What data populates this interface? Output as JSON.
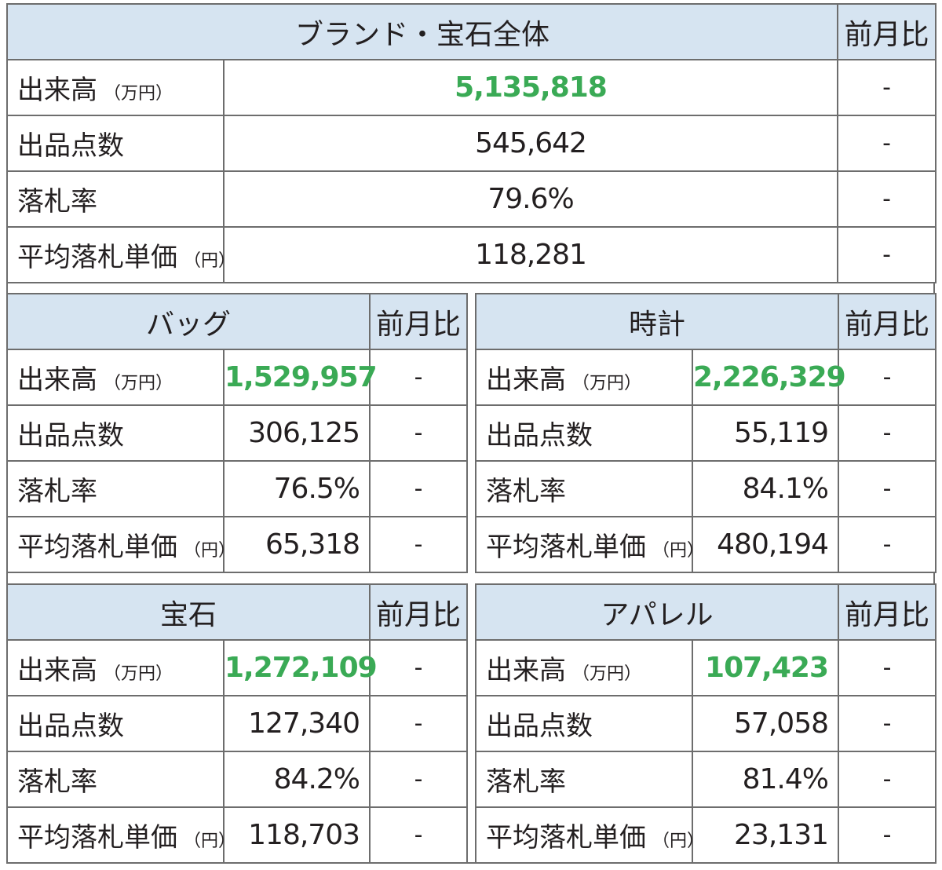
{
  "overall": {
    "title": "ブランド・宝石全体",
    "change_header": "前月比",
    "rows": [
      {
        "label": "出来高",
        "unit": "（万円）",
        "value": "5,135,818",
        "change": "-",
        "highlight": true
      },
      {
        "label": "出品点数",
        "unit": "",
        "value": "545,642",
        "change": "-"
      },
      {
        "label": "落札率",
        "unit": "",
        "value": "79.6%",
        "change": "-"
      },
      {
        "label": "平均落札単価",
        "unit": "（円）",
        "value": "118,281",
        "change": "-"
      }
    ]
  },
  "sections": [
    {
      "title": "バッグ",
      "change_header": "前月比",
      "rows": [
        {
          "label": "出来高",
          "unit": "（万円）",
          "value": "1,529,957",
          "change": "-"
        },
        {
          "label": "出品点数",
          "unit": "",
          "value": "306,125",
          "change": "-"
        },
        {
          "label": "落札率",
          "unit": "",
          "value": "76.5%",
          "change": "-"
        },
        {
          "label": "平均落札単価",
          "unit": "（円）",
          "value": "65,318",
          "change": "-"
        }
      ]
    },
    {
      "title": "時計",
      "change_header": "前月比",
      "rows": [
        {
          "label": "出来高",
          "unit": "（万円）",
          "value": "2,226,329",
          "change": "-"
        },
        {
          "label": "出品点数",
          "unit": "",
          "value": "55,119",
          "change": "-"
        },
        {
          "label": "落札率",
          "unit": "",
          "value": "84.1%",
          "change": "-"
        },
        {
          "label": "平均落札単価",
          "unit": "（円）",
          "value": "480,194",
          "change": "-"
        }
      ]
    },
    {
      "title": "宝石",
      "change_header": "前月比",
      "rows": [
        {
          "label": "出来高",
          "unit": "（万円）",
          "value": "1,272,109",
          "change": "-"
        },
        {
          "label": "出品点数",
          "unit": "",
          "value": "127,340",
          "change": "-"
        },
        {
          "label": "落札率",
          "unit": "",
          "value": "84.2%",
          "change": "-"
        },
        {
          "label": "平均落札単価",
          "unit": "（円）",
          "value": "118,703",
          "change": "-"
        }
      ]
    },
    {
      "title": "アパレル",
      "change_header": "前月比",
      "rows": [
        {
          "label": "出来高",
          "unit": "（万円）",
          "value": "107,423",
          "change": "-"
        },
        {
          "label": "出品点数",
          "unit": "",
          "value": "57,058",
          "change": "-"
        },
        {
          "label": "落札率",
          "unit": "",
          "value": "81.4%",
          "change": "-"
        },
        {
          "label": "平均落札単価",
          "unit": "（円）",
          "value": "23,131",
          "change": "-"
        }
      ]
    }
  ],
  "colors": {
    "header_bg": "#d6e4f1",
    "highlight_value": "#3aaa55",
    "border": "#6d6d6d"
  }
}
